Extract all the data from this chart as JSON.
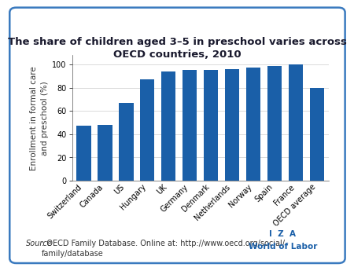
{
  "title": "The share of children aged 3–5 in preschool varies across\nOECD countries, 2010",
  "categories": [
    "Switzerland",
    "Canada",
    "US",
    "Hungary",
    "UK",
    "Germany",
    "Denmark",
    "Netherlands",
    "Norway",
    "Spain",
    "France",
    "OECD average"
  ],
  "values": [
    47,
    48,
    67,
    87,
    94,
    95,
    95,
    96,
    97,
    99,
    100,
    80
  ],
  "bar_color": "#1a5fa8",
  "ylabel": "Enrollment in formal care\nand preschool (%)",
  "ylim": [
    0,
    108
  ],
  "yticks": [
    0,
    20,
    40,
    60,
    80,
    100
  ],
  "source_text_italic": "Source",
  "source_text_normal": ": OECD Family Database. Online at: http://www.oecd.org/social/\nfamily/database",
  "iza_line1": "I  Z  A",
  "iza_line2": "World of Labor",
  "bg_color": "#ffffff",
  "border_color": "#3a7abf",
  "title_fontsize": 9.5,
  "title_color": "#1a1a2e",
  "ylabel_fontsize": 7.5,
  "tick_fontsize": 7.0,
  "source_fontsize": 7.0,
  "iza_fontsize": 7.5
}
